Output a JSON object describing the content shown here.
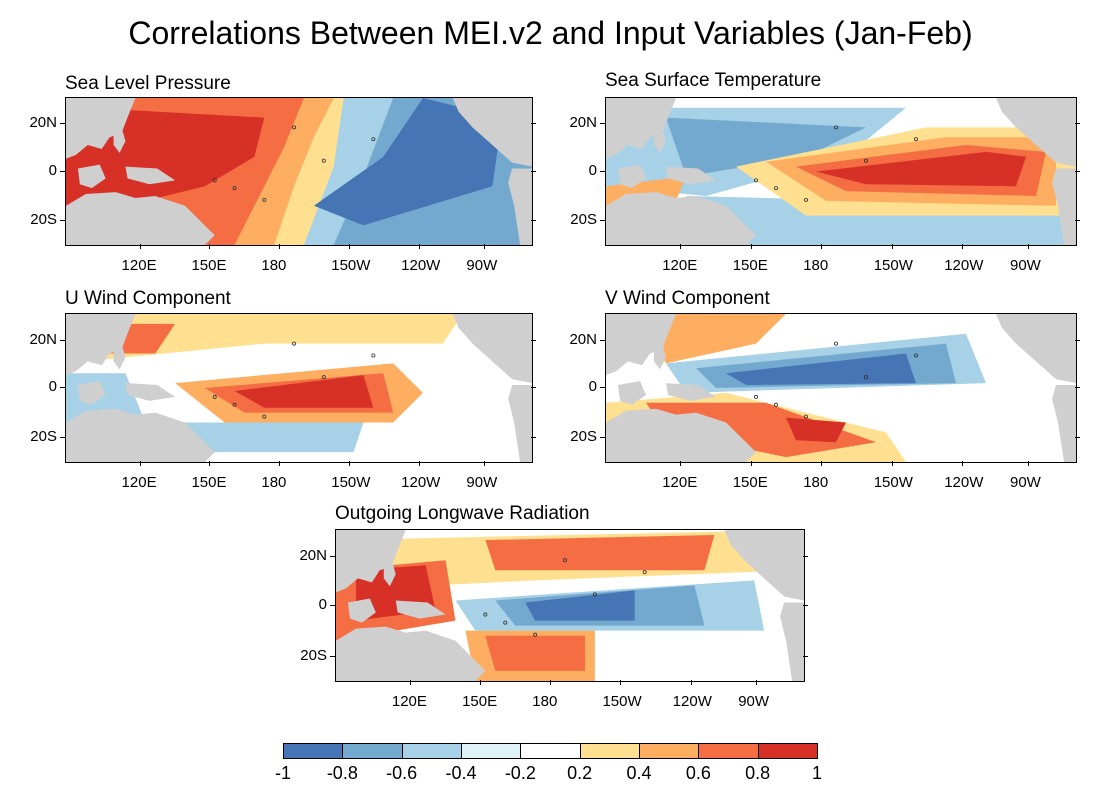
{
  "title": "Correlations Between MEI.v2 and Input Variables (Jan-Feb)",
  "lon_ticks": [
    "120E",
    "150E",
    "180",
    "150W",
    "120W",
    "90W"
  ],
  "lat_ticks": [
    "20N",
    "0",
    "20S"
  ],
  "panels": [
    {
      "title": "Sea Level Pressure",
      "field": "slp"
    },
    {
      "title": "Sea Surface Temperature",
      "field": "sst"
    },
    {
      "title": "U Wind Component",
      "field": "u"
    },
    {
      "title": "V Wind Component",
      "field": "v"
    },
    {
      "title": "Outgoing Longwave Radiation",
      "field": "olr"
    }
  ],
  "colorbar": {
    "labels": [
      "-1",
      "-0.8",
      "-0.6",
      "-0.4",
      "-0.2",
      "0.2",
      "0.4",
      "0.6",
      "0.8",
      "1"
    ],
    "colors": [
      "#4575b4",
      "#74a9cf",
      "#a6d1e6",
      "#e0f3f8",
      "#ffffff",
      "#fee090",
      "#fdae61",
      "#f46d43",
      "#d73027"
    ]
  },
  "map_colors": {
    "land": "#cfcfcf",
    "coast": "#333333"
  }
}
